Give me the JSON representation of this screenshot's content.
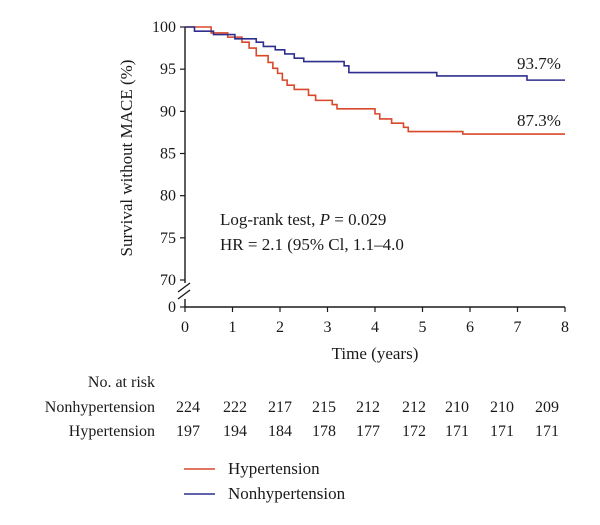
{
  "chart_data": {
    "type": "line",
    "xlabel": "Time (years)",
    "ylabel": "Survival without MACE (%)",
    "xlim": [
      0,
      8
    ],
    "ylim": [
      70,
      100
    ],
    "y_axis_break": true,
    "y_zero_tick": "0",
    "x_ticks": [
      0,
      1,
      2,
      3,
      4,
      5,
      6,
      7,
      8
    ],
    "y_ticks": [
      70,
      75,
      80,
      85,
      90,
      95,
      100
    ],
    "grid": false,
    "legend_position": "bottom",
    "series": [
      {
        "name": "Hypertension",
        "color": "#d9482b",
        "final_label": "87.3%",
        "steps": [
          [
            0,
            100
          ],
          [
            0.55,
            99.3
          ],
          [
            0.9,
            98.8
          ],
          [
            1.2,
            98.2
          ],
          [
            1.35,
            97.5
          ],
          [
            1.5,
            96.6
          ],
          [
            1.75,
            95.8
          ],
          [
            1.85,
            95.1
          ],
          [
            1.95,
            94.5
          ],
          [
            2.05,
            93.7
          ],
          [
            2.15,
            93.1
          ],
          [
            2.3,
            92.6
          ],
          [
            2.6,
            91.9
          ],
          [
            2.75,
            91.3
          ],
          [
            3.1,
            90.8
          ],
          [
            3.2,
            90.3
          ],
          [
            4.0,
            89.7
          ],
          [
            4.1,
            89.1
          ],
          [
            4.35,
            88.6
          ],
          [
            4.6,
            88.1
          ],
          [
            4.7,
            87.6
          ],
          [
            5.85,
            87.3
          ],
          [
            8.0,
            87.3
          ]
        ]
      },
      {
        "name": "Nonhypertension",
        "color": "#2e2e8e",
        "final_label": "93.7%",
        "steps": [
          [
            0,
            100
          ],
          [
            0.2,
            99.5
          ],
          [
            0.6,
            99.1
          ],
          [
            1.05,
            98.6
          ],
          [
            1.5,
            98.2
          ],
          [
            1.65,
            97.7
          ],
          [
            1.9,
            97.3
          ],
          [
            2.1,
            96.8
          ],
          [
            2.3,
            96.3
          ],
          [
            2.5,
            95.9
          ],
          [
            3.35,
            95.4
          ],
          [
            3.45,
            94.6
          ],
          [
            5.3,
            94.2
          ],
          [
            7.2,
            93.7
          ],
          [
            8.0,
            93.7
          ]
        ]
      }
    ],
    "annotations": [
      "Log-rank test, P = 0.029",
      "HR = 2.1 (95% Cl, 1.1–4.0"
    ],
    "risk_table": {
      "title": "No. at risk",
      "rows": [
        {
          "label": "Nonhypertension",
          "values": [
            224,
            222,
            217,
            215,
            212,
            212,
            210,
            210,
            209
          ]
        },
        {
          "label": "Hypertension",
          "values": [
            197,
            194,
            184,
            178,
            177,
            172,
            171,
            171,
            171
          ]
        }
      ]
    }
  }
}
